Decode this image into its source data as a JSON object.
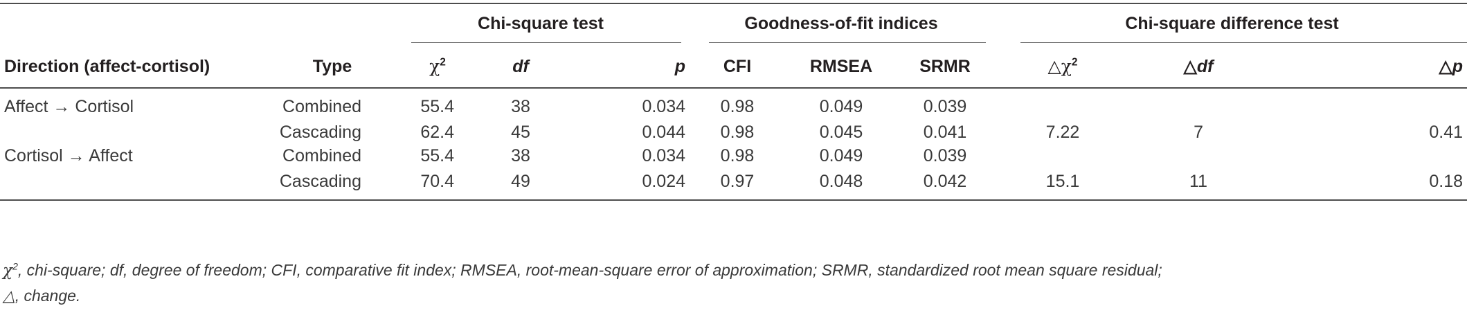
{
  "table": {
    "group_headers": {
      "chi_square_test": "Chi-square test",
      "goodness_of_fit": "Goodness-of-fit indices",
      "chi_square_difference": "Chi-square difference test"
    },
    "columns": {
      "direction": "Direction (affect-cortisol)",
      "type": "Type",
      "chi2_symbol": "χ",
      "chi2_sup": "2",
      "df": "df",
      "p": "p",
      "cfi": "CFI",
      "rmsea": "RMSEA",
      "srmr": "SRMR",
      "delta_chi2_symbol": "△χ",
      "delta_chi2_sup": "2",
      "delta_df_prefix": "△",
      "delta_df_text": "df",
      "delta_p_prefix": "△",
      "delta_p_text": "p"
    },
    "rows": [
      {
        "direction": "Affect → Cortisol",
        "type": "Combined",
        "chi2": "55.4",
        "df": "38",
        "p": "0.034",
        "cfi": "0.98",
        "rmsea": "0.049",
        "srmr": "0.039",
        "delta_chi2": "",
        "delta_df": "",
        "delta_p": ""
      },
      {
        "direction": "",
        "type": "Cascading",
        "chi2": "62.4",
        "df": "45",
        "p": "0.044",
        "cfi": "0.98",
        "rmsea": "0.045",
        "srmr": "0.041",
        "delta_chi2": "7.22",
        "delta_df": "7",
        "delta_p": "0.41"
      },
      {
        "direction": "Cortisol → Affect",
        "type": "Combined",
        "chi2": "55.4",
        "df": "38",
        "p": "0.034",
        "cfi": "0.98",
        "rmsea": "0.049",
        "srmr": "0.039",
        "delta_chi2": "",
        "delta_df": "",
        "delta_p": ""
      },
      {
        "direction": "",
        "type": "Cascading",
        "chi2": "70.4",
        "df": "49",
        "p": "0.024",
        "cfi": "0.97",
        "rmsea": "0.048",
        "srmr": "0.042",
        "delta_chi2": "15.1",
        "delta_df": "11",
        "delta_p": "0.18"
      }
    ]
  },
  "footnote": {
    "chi_symbol": "χ",
    "chi_sup": "2",
    "line1": ", chi-square; df, degree of freedom; CFI, comparative fit index; RMSEA, root-mean-square error of approximation; SRMR, standardized root mean square residual;",
    "line2": "△, change."
  }
}
